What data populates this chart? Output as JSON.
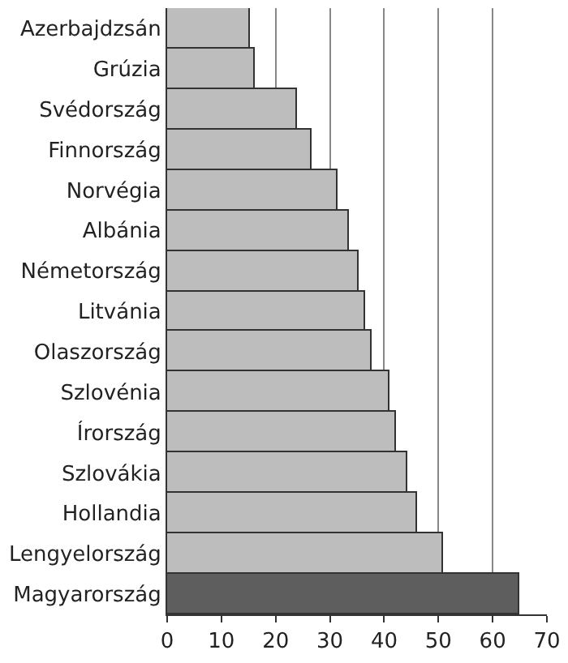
{
  "chart_data": {
    "type": "bar",
    "orientation": "horizontal",
    "categories": [
      "Azerbajdzsán",
      "Grúzia",
      "Svédország",
      "Finnország",
      "Norvégia",
      "Albánia",
      "Németország",
      "Litvánia",
      "Olaszország",
      "Szlovénia",
      "Írország",
      "Szlovákia",
      "Hollandia",
      "Lengyelország",
      "Magyarország"
    ],
    "values": [
      15.3,
      16.3,
      24.0,
      26.7,
      31.3,
      33.6,
      35.3,
      36.5,
      37.8,
      40.9,
      42.3,
      44.4,
      46.1,
      51.0,
      65.0
    ],
    "colors": [
      "#bdbdbd",
      "#bdbdbd",
      "#bdbdbd",
      "#bdbdbd",
      "#bdbdbd",
      "#bdbdbd",
      "#bdbdbd",
      "#bdbdbd",
      "#bdbdbd",
      "#bdbdbd",
      "#bdbdbd",
      "#bdbdbd",
      "#bdbdbd",
      "#bdbdbd",
      "#5e5e5e"
    ],
    "xlim": [
      0,
      70
    ],
    "xticks": [
      0,
      10,
      20,
      30,
      40,
      50,
      60,
      70
    ],
    "grid": "x"
  }
}
